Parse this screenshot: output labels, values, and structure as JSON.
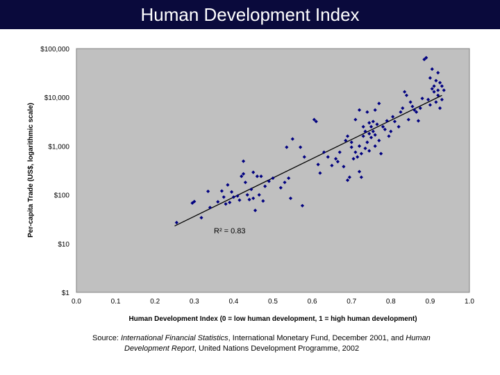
{
  "header": {
    "title": "Human Development Index"
  },
  "chart_data": {
    "type": "scatter",
    "title": "",
    "xlabel": "Human Development Index (0 = low human development, 1 = high human development)",
    "ylabel": "Per-capita Trade (US$, logarithmic scale)",
    "x_ticks": [
      "0.0",
      "0.1",
      "0.2",
      "0.3",
      "0.4",
      "0.5",
      "0.6",
      "0.7",
      "0.8",
      "0.9",
      "1.0"
    ],
    "y_ticks": [
      "$1",
      "$10",
      "$100",
      "$1,000",
      "$10,000",
      "$100,000"
    ],
    "xlim": [
      0,
      1
    ],
    "ylim": [
      1,
      100000
    ],
    "y_scale": "log",
    "grid": false,
    "plot_background": "#c0c0c0",
    "marker_color": "#000080",
    "trendline": {
      "x": [
        0.25,
        0.93
      ],
      "y": [
        23,
        11000
      ]
    },
    "annotation": "R² = 0.83",
    "series": [
      {
        "points": [
          [
            0.255,
            27
          ],
          [
            0.295,
            68
          ],
          [
            0.3,
            73
          ],
          [
            0.318,
            34
          ],
          [
            0.335,
            118
          ],
          [
            0.34,
            55
          ],
          [
            0.36,
            72
          ],
          [
            0.37,
            120
          ],
          [
            0.375,
            90
          ],
          [
            0.38,
            65
          ],
          [
            0.385,
            160
          ],
          [
            0.39,
            70
          ],
          [
            0.395,
            115
          ],
          [
            0.4,
            90
          ],
          [
            0.41,
            95
          ],
          [
            0.415,
            78
          ],
          [
            0.42,
            240
          ],
          [
            0.425,
            270
          ],
          [
            0.425,
            490
          ],
          [
            0.43,
            180
          ],
          [
            0.435,
            100
          ],
          [
            0.44,
            80
          ],
          [
            0.445,
            130
          ],
          [
            0.45,
            290
          ],
          [
            0.45,
            85
          ],
          [
            0.455,
            48
          ],
          [
            0.46,
            240
          ],
          [
            0.465,
            100
          ],
          [
            0.47,
            240
          ],
          [
            0.475,
            75
          ],
          [
            0.48,
            150
          ],
          [
            0.49,
            190
          ],
          [
            0.5,
            220
          ],
          [
            0.52,
            140
          ],
          [
            0.53,
            180
          ],
          [
            0.535,
            950
          ],
          [
            0.54,
            220
          ],
          [
            0.545,
            85
          ],
          [
            0.55,
            1400
          ],
          [
            0.57,
            950
          ],
          [
            0.575,
            60
          ],
          [
            0.58,
            600
          ],
          [
            0.605,
            3500
          ],
          [
            0.61,
            3200
          ],
          [
            0.615,
            420
          ],
          [
            0.62,
            280
          ],
          [
            0.63,
            750
          ],
          [
            0.64,
            600
          ],
          [
            0.65,
            400
          ],
          [
            0.66,
            550
          ],
          [
            0.665,
            480
          ],
          [
            0.67,
            750
          ],
          [
            0.68,
            380
          ],
          [
            0.685,
            1300
          ],
          [
            0.69,
            1600
          ],
          [
            0.69,
            200
          ],
          [
            0.695,
            230
          ],
          [
            0.7,
            1200
          ],
          [
            0.7,
            950
          ],
          [
            0.705,
            550
          ],
          [
            0.71,
            750
          ],
          [
            0.71,
            3500
          ],
          [
            0.715,
            600
          ],
          [
            0.72,
            5500
          ],
          [
            0.72,
            1000
          ],
          [
            0.72,
            300
          ],
          [
            0.725,
            230
          ],
          [
            0.725,
            700
          ],
          [
            0.73,
            1600
          ],
          [
            0.73,
            2500
          ],
          [
            0.735,
            2000
          ],
          [
            0.735,
            900
          ],
          [
            0.74,
            5000
          ],
          [
            0.74,
            1200
          ],
          [
            0.745,
            3000
          ],
          [
            0.745,
            800
          ],
          [
            0.745,
            1800
          ],
          [
            0.75,
            1500
          ],
          [
            0.75,
            2500
          ],
          [
            0.755,
            3200
          ],
          [
            0.755,
            2000
          ],
          [
            0.76,
            1700
          ],
          [
            0.76,
            1000
          ],
          [
            0.76,
            5500
          ],
          [
            0.765,
            2800
          ],
          [
            0.77,
            7500
          ],
          [
            0.77,
            1300
          ],
          [
            0.775,
            700
          ],
          [
            0.78,
            2500
          ],
          [
            0.785,
            2200
          ],
          [
            0.79,
            3300
          ],
          [
            0.795,
            1600
          ],
          [
            0.8,
            2000
          ],
          [
            0.805,
            4000
          ],
          [
            0.81,
            3200
          ],
          [
            0.82,
            2500
          ],
          [
            0.825,
            5000
          ],
          [
            0.83,
            6000
          ],
          [
            0.835,
            13000
          ],
          [
            0.84,
            11000
          ],
          [
            0.845,
            3500
          ],
          [
            0.85,
            8000
          ],
          [
            0.855,
            6500
          ],
          [
            0.86,
            5500
          ],
          [
            0.865,
            5000
          ],
          [
            0.87,
            3300
          ],
          [
            0.875,
            6000
          ],
          [
            0.88,
            9500
          ],
          [
            0.885,
            60000
          ],
          [
            0.89,
            65000
          ],
          [
            0.895,
            9000
          ],
          [
            0.9,
            7000
          ],
          [
            0.9,
            25000
          ],
          [
            0.905,
            38000
          ],
          [
            0.905,
            15000
          ],
          [
            0.91,
            13000
          ],
          [
            0.91,
            17000
          ],
          [
            0.915,
            22000
          ],
          [
            0.915,
            8000
          ],
          [
            0.92,
            11000
          ],
          [
            0.92,
            32000
          ],
          [
            0.92,
            14000
          ],
          [
            0.925,
            6000
          ],
          [
            0.925,
            20000
          ],
          [
            0.93,
            9000
          ],
          [
            0.93,
            17000
          ],
          [
            0.935,
            14000
          ]
        ]
      }
    ]
  },
  "source": {
    "prefix": "Source: ",
    "publication_1": "International Financial Statistics",
    "middle": ", International Monetary Fund, December 2001, and ",
    "publication_2_line1": "Human",
    "publication_2_line2": "Development Report",
    "suffix": ", United Nations Development Programme, 2002"
  }
}
